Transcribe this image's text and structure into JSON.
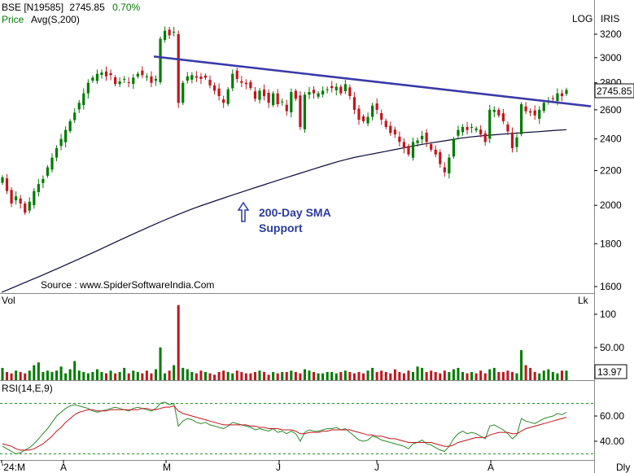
{
  "header": {
    "symbol": "BSE [N19585]",
    "price": "2745.85",
    "change": "0.70%",
    "price_label": "Price",
    "avg_label": "Avg(S,200)",
    "log_label": "LOG",
    "feed_label": "IRIS",
    "last_badge": "2745.85"
  },
  "annotation": {
    "line1": "200-Day SMA",
    "line2": "Support"
  },
  "source_text": "Source : www.SpiderSoftwareIndia.Com",
  "volume_panel": {
    "label": "Vol",
    "unit": "Lk",
    "ticks": [
      "100",
      "50.00"
    ],
    "last_badge": "13.97"
  },
  "rsi_panel": {
    "label": "RSI(14,E,9)",
    "ticks": [
      "60.00",
      "40.00"
    ]
  },
  "x_axis": {
    "labels": [
      "'24:M",
      "A",
      "M",
      "J",
      "J",
      "A",
      "Dly"
    ]
  },
  "price_axis": {
    "ticks": [
      "3200",
      "3000",
      "2800",
      "2600",
      "2400",
      "2200",
      "2000",
      "1800",
      "1600"
    ]
  },
  "colors": {
    "up": "#007a00",
    "down": "#c0161c",
    "trendline": "#3a3aa8",
    "sma": "#0a0a3a",
    "annotation": "#2a3a9e",
    "rsi": "#2a8a2a",
    "rsi_signal": "#c0161c"
  },
  "chart_data": {
    "type": "candlestick",
    "scale": "log",
    "ylim": [
      1550,
      3300
    ],
    "close": [
      2160,
      2080,
      2010,
      2050,
      2010,
      1960,
      2020,
      2080,
      2120,
      2150,
      2220,
      2280,
      2340,
      2400,
      2460,
      2520,
      2580,
      2650,
      2720,
      2800,
      2840,
      2870,
      2880,
      2850,
      2860,
      2790,
      2810,
      2830,
      2800,
      2840,
      2870,
      2860,
      2850,
      2800,
      2830,
      3160,
      3230,
      3190,
      3220,
      2650,
      2800,
      2850,
      2860,
      2840,
      2830,
      2840,
      2780,
      2740,
      2700,
      2650,
      2750,
      2870,
      2830,
      2800,
      2790,
      2760,
      2680,
      2740,
      2700,
      2650,
      2720,
      2640,
      2660,
      2590,
      2730,
      2680,
      2480,
      2710,
      2730,
      2720,
      2720,
      2740,
      2750,
      2760,
      2770,
      2720,
      2790,
      2700,
      2600,
      2530,
      2520,
      2550,
      2630,
      2600,
      2530,
      2480,
      2440,
      2430,
      2380,
      2340,
      2300,
      2380,
      2390,
      2420,
      2380,
      2330,
      2300,
      2240,
      2190,
      2280,
      2400,
      2460,
      2480,
      2460,
      2480,
      2470,
      2430,
      2380,
      2600,
      2600,
      2560,
      2520,
      2450,
      2340,
      2410,
      2640,
      2590,
      2580,
      2560,
      2600,
      2650,
      2660,
      2680,
      2720,
      2700,
      2746
    ],
    "sma200": [
      1575,
      1592,
      1610,
      1628,
      1646,
      1665,
      1684,
      1704,
      1724,
      1745,
      1766,
      1788,
      1810,
      1832,
      1854,
      1876,
      1898,
      1920,
      1941,
      1962,
      1982,
      2001,
      2019,
      2037,
      2055,
      2073,
      2091,
      2109,
      2127,
      2145,
      2163,
      2181,
      2199,
      2217,
      2235,
      2253,
      2269,
      2283,
      2295,
      2306,
      2318,
      2330,
      2342,
      2354,
      2365,
      2375,
      2385,
      2395,
      2405,
      2413,
      2420,
      2425,
      2430,
      2435,
      2440,
      2444,
      2448,
      2453,
      2458,
      2462
    ],
    "trendline": [
      [
        3010,
        2950
      ],
      [
        2630,
        2625
      ]
    ],
    "volume": [
      18,
      12,
      10,
      14,
      12,
      10,
      14,
      22,
      26,
      12,
      14,
      12,
      14,
      20,
      10,
      16,
      28,
      14,
      12,
      10,
      12,
      16,
      12,
      10,
      14,
      10,
      12,
      18,
      10,
      14,
      12,
      10,
      14,
      10,
      16,
      48,
      10,
      14,
      22,
      110,
      18,
      16,
      12,
      10,
      14,
      12,
      10,
      8,
      12,
      14,
      12,
      10,
      14,
      12,
      10,
      10,
      12,
      14,
      12,
      8,
      12,
      10,
      12,
      12,
      14,
      12,
      10,
      16,
      14,
      12,
      10,
      10,
      12,
      12,
      10,
      12,
      14,
      12,
      10,
      12,
      10,
      14,
      18,
      12,
      14,
      12,
      10,
      16,
      12,
      10,
      14,
      12,
      20,
      18,
      12,
      14,
      12,
      10,
      14,
      12,
      16,
      18,
      12,
      10,
      12,
      10,
      14,
      10,
      16,
      18,
      12,
      12,
      14,
      12,
      10,
      44,
      22,
      18,
      12,
      10,
      14,
      16,
      12,
      10,
      14,
      14
    ],
    "rsi": [
      36,
      34,
      32,
      30,
      31,
      33,
      35,
      38,
      42,
      46,
      50,
      55,
      60,
      63,
      66,
      68,
      69,
      68,
      67,
      66,
      64,
      63,
      64,
      65,
      66,
      67,
      66,
      65,
      64,
      66,
      67,
      66,
      65,
      64,
      66,
      70,
      71,
      69,
      70,
      52,
      56,
      58,
      57,
      55,
      54,
      55,
      53,
      52,
      51,
      50,
      52,
      55,
      54,
      53,
      52,
      51,
      49,
      50,
      49,
      48,
      50,
      47,
      48,
      46,
      48,
      46,
      40,
      47,
      49,
      48,
      48,
      49,
      50,
      50,
      51,
      49,
      50,
      47,
      44,
      41,
      40,
      41,
      44,
      43,
      41,
      40,
      39,
      38,
      37,
      36,
      34,
      38,
      39,
      41,
      38,
      37,
      35,
      33,
      32,
      36,
      42,
      46,
      48,
      46,
      47,
      46,
      44,
      42,
      52,
      53,
      51,
      49,
      46,
      42,
      45,
      58,
      56,
      55,
      54,
      56,
      58,
      59,
      60,
      62,
      61,
      63
    ],
    "rsi_signal": [
      38,
      37,
      36,
      34,
      33,
      33,
      33,
      34,
      36,
      38,
      41,
      44,
      48,
      51,
      55,
      58,
      61,
      63,
      64,
      65,
      65,
      64,
      64,
      64,
      65,
      65,
      65,
      65,
      65,
      65,
      65,
      66,
      66,
      65,
      65,
      66,
      67,
      67,
      68,
      64,
      62,
      61,
      60,
      59,
      58,
      57,
      56,
      55,
      54,
      53,
      53,
      53,
      53,
      53,
      53,
      52,
      52,
      51,
      51,
      50,
      50,
      50,
      49,
      49,
      49,
      48,
      46,
      46,
      47,
      47,
      47,
      48,
      48,
      49,
      49,
      49,
      49,
      49,
      48,
      47,
      46,
      45,
      45,
      44,
      44,
      43,
      42,
      42,
      41,
      40,
      39,
      39,
      39,
      39,
      39,
      39,
      38,
      37,
      36,
      36,
      37,
      39,
      40,
      41,
      42,
      43,
      43,
      43,
      45,
      46,
      47,
      47,
      47,
      46,
      46,
      48,
      50,
      51,
      52,
      53,
      54,
      55,
      56,
      57,
      58,
      59
    ],
    "rsi_levels": [
      70,
      30
    ]
  }
}
